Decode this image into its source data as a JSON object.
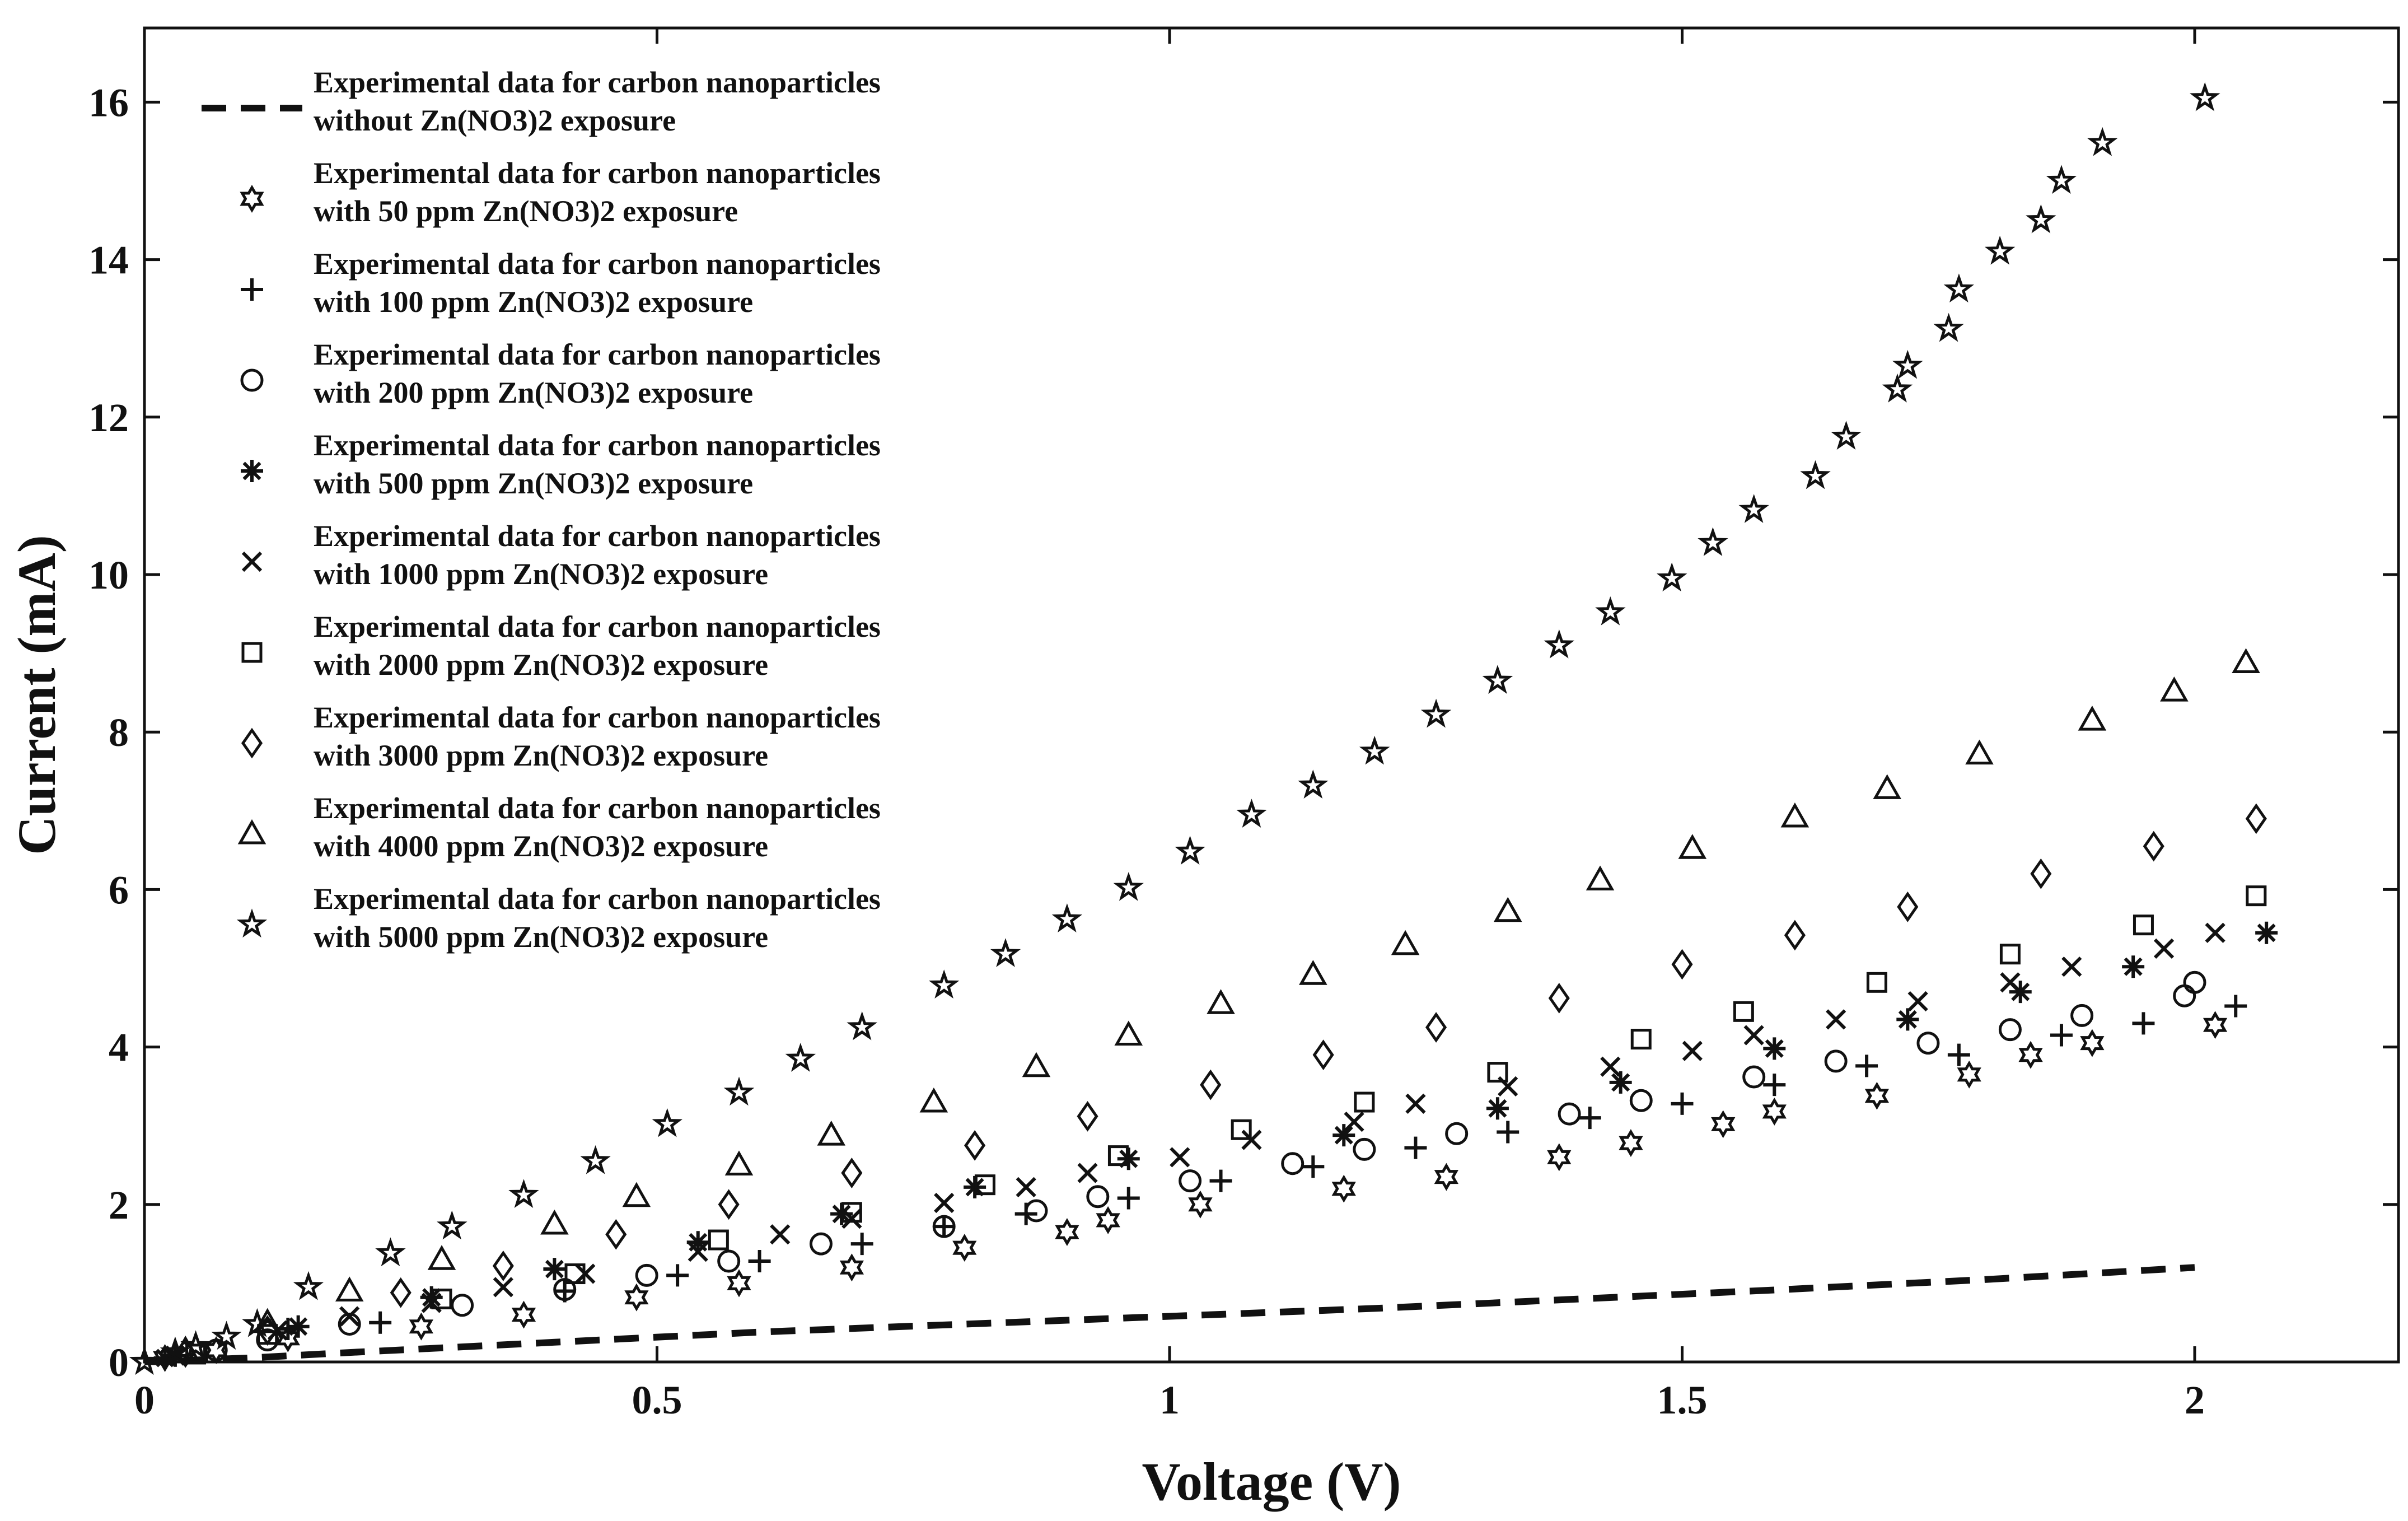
{
  "chart_data": {
    "type": "scatter",
    "title": "",
    "xlabel": "Voltage (V)",
    "ylabel": "Current (mA)",
    "xlim": [
      0,
      2.2
    ],
    "ylim": [
      0,
      17
    ],
    "xticks": [
      0,
      0.5,
      1,
      1.5,
      2
    ],
    "yticks": [
      0,
      2,
      4,
      6,
      8,
      10,
      12,
      14,
      16
    ],
    "xtick_labels": [
      "0",
      "0.5",
      "1",
      "1.5",
      "2"
    ],
    "ytick_labels": [
      "0",
      "2",
      "4",
      "6",
      "8",
      "10",
      "12",
      "14",
      "16"
    ],
    "grid": false,
    "legend_position": "top-left",
    "series": [
      {
        "name": "Experimental data for carbon nanoparticles without Zn(NO3)2 exposure",
        "legend_lines": [
          "Experimental data for carbon nanoparticles",
          "without Zn(NO3)2 exposure"
        ],
        "marker": "dashed-line",
        "x": [
          0,
          0.1,
          0.2,
          0.4,
          0.6,
          0.8,
          1.0,
          1.2,
          1.4,
          1.6,
          1.8,
          2.0
        ],
        "y": [
          0,
          0.05,
          0.12,
          0.25,
          0.38,
          0.48,
          0.58,
          0.68,
          0.8,
          0.92,
          1.05,
          1.2
        ]
      },
      {
        "name": "Experimental data for carbon nanoparticles with 50 ppm Zn(NO3)2 exposure",
        "legend_lines": [
          "Experimental data for carbon nanoparticles",
          "with 50 ppm Zn(NO3)2 exposure"
        ],
        "marker": "hexagram",
        "x": [
          0.02,
          0.07,
          0.14,
          0.27,
          0.37,
          0.48,
          0.58,
          0.69,
          0.8,
          0.9,
          0.94,
          1.03,
          1.17,
          1.27,
          1.38,
          1.45,
          1.54,
          1.59,
          1.69,
          1.78,
          1.84,
          1.9,
          2.02
        ],
        "y": [
          0.05,
          0.15,
          0.3,
          0.45,
          0.6,
          0.82,
          1.0,
          1.2,
          1.45,
          1.65,
          1.8,
          2.0,
          2.2,
          2.35,
          2.6,
          2.78,
          3.02,
          3.18,
          3.38,
          3.65,
          3.9,
          4.05,
          4.28
        ]
      },
      {
        "name": "Experimental data for carbon nanoparticles with 100 ppm Zn(NO3)2 exposure",
        "legend_lines": [
          "Experimental data for carbon nanoparticles",
          "with 100 ppm Zn(NO3)2 exposure"
        ],
        "marker": "plus",
        "x": [
          0.03,
          0.14,
          0.23,
          0.41,
          0.52,
          0.6,
          0.7,
          0.78,
          0.86,
          0.96,
          1.05,
          1.14,
          1.24,
          1.33,
          1.41,
          1.5,
          1.59,
          1.68,
          1.77,
          1.87,
          1.95,
          2.04
        ],
        "y": [
          0.08,
          0.42,
          0.5,
          0.9,
          1.1,
          1.28,
          1.5,
          1.72,
          1.88,
          2.08,
          2.3,
          2.48,
          2.72,
          2.92,
          3.1,
          3.28,
          3.52,
          3.76,
          3.9,
          4.15,
          4.3,
          4.52
        ]
      },
      {
        "name": "Experimental data for carbon nanoparticles with 200 ppm Zn(NO3)2 exposure",
        "legend_lines": [
          "Experimental data for carbon nanoparticles",
          "with 200 ppm Zn(NO3)2 exposure"
        ],
        "marker": "circle",
        "x": [
          0.07,
          0.12,
          0.2,
          0.31,
          0.41,
          0.49,
          0.57,
          0.66,
          0.78,
          0.87,
          0.93,
          1.02,
          1.12,
          1.19,
          1.28,
          1.39,
          1.46,
          1.57,
          1.65,
          1.74,
          1.82,
          1.89,
          1.99,
          2.0
        ],
        "y": [
          0.15,
          0.28,
          0.48,
          0.72,
          0.92,
          1.1,
          1.28,
          1.5,
          1.72,
          1.92,
          2.1,
          2.3,
          2.52,
          2.7,
          2.9,
          3.15,
          3.32,
          3.62,
          3.82,
          4.05,
          4.22,
          4.4,
          4.65,
          4.82
        ]
      },
      {
        "name": "Experimental data for carbon nanoparticles with 500 ppm Zn(NO3)2 exposure",
        "legend_lines": [
          "Experimental data for carbon nanoparticles",
          "with 500 ppm Zn(NO3)2 exposure"
        ],
        "marker": "asterisk",
        "x": [
          0.02,
          0.15,
          0.28,
          0.4,
          0.54,
          0.68,
          0.81,
          0.96,
          1.17,
          1.32,
          1.44,
          1.59,
          1.72,
          1.83,
          1.94,
          2.07
        ],
        "y": [
          0.05,
          0.45,
          0.82,
          1.18,
          1.52,
          1.88,
          2.22,
          2.58,
          2.88,
          3.22,
          3.55,
          3.98,
          4.35,
          4.7,
          5.02,
          5.45
        ]
      },
      {
        "name": "Experimental data for carbon nanoparticles with 1000 ppm Zn(NO3)2 exposure",
        "legend_lines": [
          "Experimental data for carbon nanoparticles",
          "with 1000 ppm Zn(NO3)2 exposure"
        ],
        "marker": "x",
        "x": [
          0.03,
          0.13,
          0.2,
          0.28,
          0.35,
          0.43,
          0.54,
          0.62,
          0.69,
          0.78,
          0.86,
          0.92,
          1.01,
          1.08,
          1.18,
          1.24,
          1.33,
          1.43,
          1.51,
          1.57,
          1.65,
          1.73,
          1.82,
          1.88,
          1.97,
          2.02
        ],
        "y": [
          0.08,
          0.4,
          0.58,
          0.75,
          0.95,
          1.12,
          1.4,
          1.62,
          1.82,
          2.02,
          2.22,
          2.4,
          2.6,
          2.82,
          3.05,
          3.28,
          3.5,
          3.75,
          3.95,
          4.15,
          4.35,
          4.58,
          4.82,
          5.02,
          5.25,
          5.45
        ]
      },
      {
        "name": "Experimental data for carbon nanoparticles with 2000 ppm Zn(NO3)2 exposure",
        "legend_lines": [
          "Experimental data for carbon nanoparticles",
          "with 2000 ppm Zn(NO3)2 exposure"
        ],
        "marker": "square",
        "x": [
          0.05,
          0.12,
          0.29,
          0.42,
          0.56,
          0.69,
          0.82,
          0.95,
          1.07,
          1.19,
          1.32,
          1.46,
          1.56,
          1.69,
          1.82,
          1.95,
          2.06
        ],
        "y": [
          0.1,
          0.35,
          0.8,
          1.12,
          1.55,
          1.9,
          2.25,
          2.62,
          2.95,
          3.3,
          3.68,
          4.1,
          4.45,
          4.82,
          5.18,
          5.55,
          5.92
        ]
      },
      {
        "name": "Experimental data for carbon nanoparticles with 3000 ppm Zn(NO3)2 exposure",
        "legend_lines": [
          "Experimental data for carbon nanoparticles",
          "with 3000 ppm Zn(NO3)2 exposure"
        ],
        "marker": "diamond",
        "x": [
          0.04,
          0.12,
          0.25,
          0.35,
          0.46,
          0.57,
          0.69,
          0.81,
          0.92,
          1.04,
          1.15,
          1.26,
          1.38,
          1.5,
          1.61,
          1.72,
          1.85,
          1.96,
          2.06
        ],
        "y": [
          0.12,
          0.4,
          0.88,
          1.22,
          1.62,
          2.0,
          2.4,
          2.75,
          3.12,
          3.52,
          3.9,
          4.25,
          4.62,
          5.05,
          5.42,
          5.78,
          6.2,
          6.55,
          6.9
        ]
      },
      {
        "name": "Experimental data for carbon nanoparticles with 4000 ppm Zn(NO3)2 exposure",
        "legend_lines": [
          "Experimental data for carbon nanoparticles",
          "with 4000 ppm Zn(NO3)2 exposure"
        ],
        "marker": "triangle",
        "x": [
          0.04,
          0.12,
          0.2,
          0.29,
          0.4,
          0.48,
          0.58,
          0.67,
          0.77,
          0.87,
          0.96,
          1.05,
          1.14,
          1.23,
          1.33,
          1.42,
          1.51,
          1.61,
          1.7,
          1.79,
          1.9,
          1.98,
          2.05
        ],
        "y": [
          0.15,
          0.5,
          0.9,
          1.3,
          1.75,
          2.1,
          2.5,
          2.88,
          3.3,
          3.75,
          4.15,
          4.55,
          4.92,
          5.3,
          5.72,
          6.12,
          6.52,
          6.92,
          7.28,
          7.72,
          8.15,
          8.52,
          8.88
        ]
      },
      {
        "name": "Experimental data for carbon nanoparticles with 5000 ppm Zn(NO3)2 exposure",
        "legend_lines": [
          "Experimental data for carbon nanoparticles",
          "with 5000 ppm Zn(NO3)2 exposure"
        ],
        "marker": "pentagram",
        "x": [
          0,
          0.03,
          0.05,
          0.08,
          0.11,
          0.16,
          0.24,
          0.3,
          0.37,
          0.44,
          0.51,
          0.58,
          0.64,
          0.7,
          0.78,
          0.84,
          0.9,
          0.96,
          1.02,
          1.08,
          1.14,
          1.2,
          1.26,
          1.32,
          1.38,
          1.43,
          1.49,
          1.53,
          1.57,
          1.63,
          1.66,
          1.71,
          1.72,
          1.76,
          1.77,
          1.81,
          1.85,
          1.87,
          1.91,
          2.01
        ],
        "y": [
          0,
          0.12,
          0.2,
          0.32,
          0.48,
          0.95,
          1.38,
          1.72,
          2.12,
          2.55,
          3.02,
          3.42,
          3.85,
          4.25,
          4.78,
          5.18,
          5.62,
          6.02,
          6.48,
          6.95,
          7.32,
          7.75,
          8.22,
          8.65,
          9.1,
          9.52,
          9.95,
          10.4,
          10.82,
          11.25,
          11.75,
          12.35,
          12.65,
          13.12,
          13.62,
          14.1,
          14.5,
          15.0,
          15.48,
          16.05
        ]
      }
    ]
  }
}
